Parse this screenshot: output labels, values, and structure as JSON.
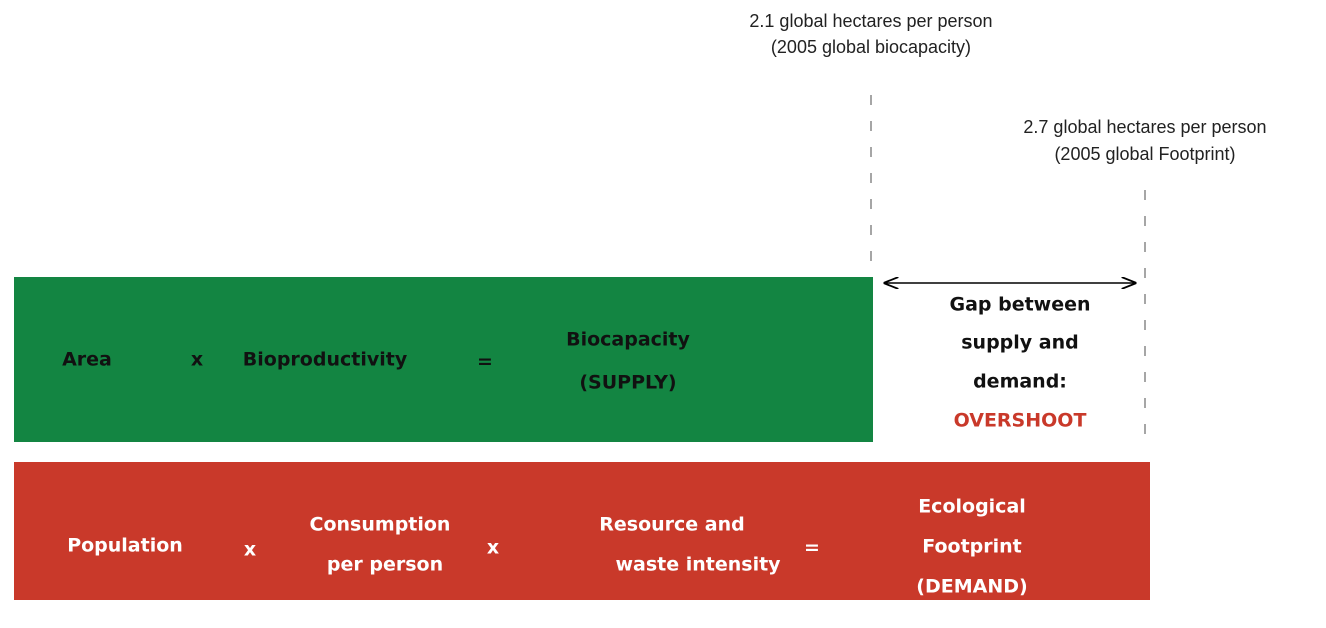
{
  "markers": [
    {
      "lines": [
        "2.1 global hectares per person",
        "(2005 global biocapacity)"
      ]
    },
    {
      "lines": [
        "2.7 global hectares per person",
        "(2005 global Footprint)"
      ]
    }
  ],
  "supply": {
    "terms": [
      {
        "lines": [
          "Area"
        ]
      },
      {
        "lines": [
          "x"
        ]
      },
      {
        "lines": [
          "Bioproductivity"
        ]
      },
      {
        "lines": [
          "="
        ]
      },
      {
        "lines": [
          "Biocapacity",
          "(SUPPLY)"
        ]
      }
    ]
  },
  "gap": {
    "lines": [
      "Gap between",
      "supply and",
      "demand:"
    ],
    "highlight": "OVERSHOOT"
  },
  "demand": {
    "terms": [
      {
        "lines": [
          "Population"
        ]
      },
      {
        "lines": [
          "x"
        ]
      },
      {
        "lines": [
          "Consumption",
          "per person"
        ]
      },
      {
        "lines": [
          "x"
        ]
      },
      {
        "lines": [
          "Resource and",
          "waste intensity"
        ]
      },
      {
        "lines": [
          "="
        ]
      },
      {
        "lines": [
          "Ecological",
          "Footprint",
          "(DEMAND)"
        ]
      }
    ]
  }
}
